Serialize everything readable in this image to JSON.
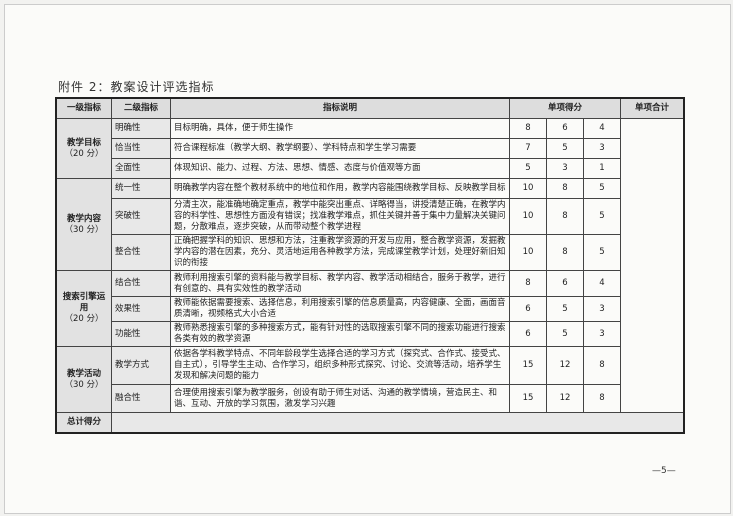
{
  "title": "附件 2：教案设计评选指标",
  "headers": {
    "level1": "一级指标",
    "level2": "二级指标",
    "desc": "指标说明",
    "score": "单项得分",
    "total": "单项合计"
  },
  "groups": [
    {
      "name": "教学目标",
      "points": "（20 分）",
      "items": [
        {
          "name": "明确性",
          "desc": "目标明确，具体，便于师生操作",
          "scores": [
            "8",
            "6",
            "4"
          ]
        },
        {
          "name": "恰当性",
          "desc": "符合课程标准（教学大纲、教学纲要）、学科特点和学生学习需要",
          "scores": [
            "7",
            "5",
            "3"
          ]
        },
        {
          "name": "全面性",
          "desc": "体现知识、能力、过程、方法、思想、情感、态度与价值观等方面",
          "scores": [
            "5",
            "3",
            "1"
          ]
        }
      ]
    },
    {
      "name": "教学内容",
      "points": "（30 分）",
      "items": [
        {
          "name": "统一性",
          "desc": "明确教学内容在整个教材系统中的地位和作用，教学内容能围绕教学目标、反映教学目标",
          "scores": [
            "10",
            "8",
            "5"
          ]
        },
        {
          "name": "突破性",
          "desc": "分清主次，能准确地确定重点，教学中能突出重点、详略得当，讲授清楚正确，在教学内容的科学性、思想性方面没有错误；找准教学难点，抓住关键并善于集中力量解决关键问题，分散难点，逐步突破，从而带动整个教学进程",
          "scores": [
            "10",
            "8",
            "5"
          ]
        },
        {
          "name": "整合性",
          "desc": "正确把握学科的知识、思想和方法，注重教学资源的开发与应用，整合教学资源，发掘教学内容的潜在因素，充分、灵活地运用各种教学方法，完成课堂教学计划，处理好新旧知识的衔接",
          "scores": [
            "10",
            "8",
            "5"
          ]
        }
      ]
    },
    {
      "name": "搜索引擎运用",
      "points": "（20 分）",
      "items": [
        {
          "name": "结合性",
          "desc": "教师利用搜索引擎的资料能与教学目标、教学内容、教学活动相结合，服务于教学，进行有创意的、具有实效性的教学活动",
          "scores": [
            "8",
            "6",
            "4"
          ]
        },
        {
          "name": "效果性",
          "desc": "教师能依据需要搜索、选择信息，利用搜索引擎的信息质量高，内容健康、全面，画面音质清晰，视频格式大小合适",
          "scores": [
            "6",
            "5",
            "3"
          ]
        },
        {
          "name": "功能性",
          "desc": "教师熟悉搜索引擎的多种搜索方式，能有针对性的选取搜索引擎不同的搜索功能进行搜索各类有效的教学资源",
          "scores": [
            "6",
            "5",
            "3"
          ]
        }
      ]
    },
    {
      "name": "教学活动",
      "points": "（30 分）",
      "items": [
        {
          "name": "教学方式",
          "desc": "依据各学科教学特点、不同年龄段学生选择合适的学习方式（探究式、合作式、接受式、自主式），引导学生主动、合作学习，组织多种形式探究、讨论、交流等活动，培养学生发现和解决问题的能力",
          "scores": [
            "15",
            "12",
            "8"
          ]
        },
        {
          "name": "融合性",
          "desc": "合理使用搜索引擎为教学服务，创设有助于师生对话、沟通的教学情境，营造民主、和谐、互动、开放的学习氛围，激发学习兴趣",
          "scores": [
            "15",
            "12",
            "8"
          ]
        }
      ]
    }
  ],
  "total_label": "总计得分",
  "page_number": "—5—"
}
